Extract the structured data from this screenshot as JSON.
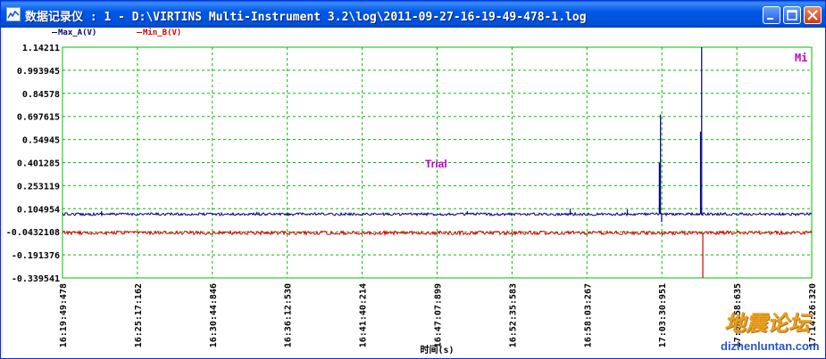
{
  "window": {
    "title": "数据记录仪 : 1 - D:\\VIRTINS Multi-Instrument 3.2\\log\\2011-09-27-16-19-49-478-1.log",
    "controls": {
      "minimize": "minimize",
      "maximize": "maximize",
      "close": "close"
    }
  },
  "legend": {
    "series_a": "Max_A(V)",
    "series_b": "Min_B(V)"
  },
  "overlay": {
    "trial_text": "Trial",
    "corner_label": "Mi"
  },
  "watermark": {
    "cn": "地震论坛",
    "url": "dizhenluntan.com"
  },
  "colors": {
    "grid": "#00c000",
    "series_a": "#00007f",
    "series_b": "#d00000",
    "trial": "#c000c0",
    "background": "#ffffff"
  },
  "chart_data": {
    "type": "line",
    "xlabel": "时间(s)",
    "ylabel": "",
    "ylim": [
      -0.339541,
      1.14211
    ],
    "y_ticks": [
      "1.14211",
      "0.993945",
      "0.84578",
      "0.697615",
      "0.54945",
      "0.401285",
      "0.253119",
      "0.104954",
      "-0.0432108",
      "-0.191376",
      "-0.339541"
    ],
    "x_ticks": [
      "16:19:49:478",
      "16:25:17:162",
      "16:30:44:846",
      "16:36:12:530",
      "16:41:40:214",
      "16:47:07:899",
      "16:52:35:583",
      "16:58:03:267",
      "17:03:30:951",
      "17:08:58:635",
      "17:14:26:320"
    ],
    "grid": true,
    "series": [
      {
        "name": "Max_A(V)",
        "baseline": 0.07,
        "spikes": [
          {
            "x": "16:22:40",
            "y": 0.09
          },
          {
            "x": "16:34:00",
            "y": 0.085
          },
          {
            "x": "16:49:20",
            "y": 0.09
          },
          {
            "x": "16:56:50",
            "y": 0.105
          },
          {
            "x": "17:01:00",
            "y": 0.1
          },
          {
            "x": "17:03:20",
            "y": 0.4
          },
          {
            "x": "17:03:25",
            "y": 0.71
          },
          {
            "x": "17:06:20",
            "y": 0.6
          },
          {
            "x": "17:06:25",
            "y": 1.14211
          },
          {
            "x": "17:12:20",
            "y": 0.08
          }
        ],
        "dips": [
          {
            "x": "17:03:30",
            "y": 0.02
          },
          {
            "x": "17:06:30",
            "y": 0.06
          }
        ]
      },
      {
        "name": "Min_B(V)",
        "baseline": -0.05,
        "spikes": [
          {
            "x": "17:06:25",
            "y": -0.045
          }
        ],
        "dips": [
          {
            "x": "17:06:30",
            "y": -0.339541
          }
        ]
      }
    ]
  }
}
